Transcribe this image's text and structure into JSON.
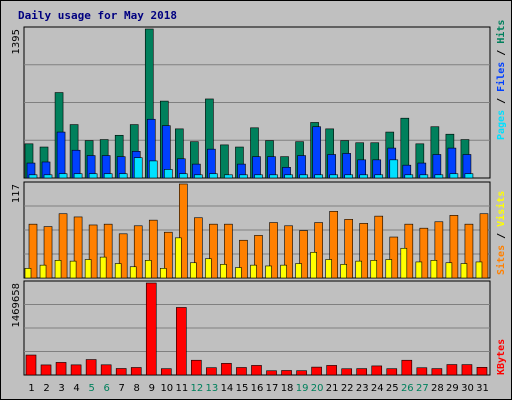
{
  "colors": {
    "frame_bg": "#c0c0c0",
    "page_bg": "#ffffff",
    "title": "#000080",
    "hits": "#00805c",
    "files": "#0040ff",
    "pages": "#00e0ff",
    "visits": "#ffff00",
    "sites": "#ff8000",
    "kbytes": "#ff0000",
    "weekend_label": "#00805c",
    "weekday_label": "#000000",
    "gridline": "#808080"
  },
  "chart_data": [
    {
      "type": "bar",
      "title": "Daily usage for May 2018",
      "categories": [
        "1",
        "2",
        "3",
        "4",
        "5",
        "6",
        "7",
        "8",
        "9",
        "10",
        "11",
        "12",
        "13",
        "14",
        "15",
        "16",
        "17",
        "18",
        "19",
        "20",
        "21",
        "22",
        "23",
        "24",
        "25",
        "26",
        "27",
        "28",
        "29",
        "30",
        "31"
      ],
      "weekend_days": [
        "5",
        "6",
        "12",
        "13",
        "19",
        "20",
        "26",
        "27"
      ],
      "ymax_label": "1395",
      "ylim": [
        0,
        1395
      ],
      "legend": [
        "Pages",
        "Files",
        "Hits"
      ],
      "series": [
        {
          "name": "Hits",
          "values": [
            320,
            290,
            800,
            500,
            350,
            360,
            400,
            500,
            1395,
            720,
            460,
            340,
            740,
            310,
            290,
            470,
            350,
            200,
            340,
            520,
            460,
            350,
            330,
            330,
            430,
            560,
            320,
            480,
            410,
            360,
            0
          ]
        },
        {
          "name": "Files",
          "values": [
            140,
            150,
            430,
            260,
            210,
            210,
            200,
            250,
            550,
            490,
            180,
            130,
            270,
            0,
            130,
            200,
            200,
            100,
            210,
            480,
            220,
            230,
            170,
            170,
            280,
            120,
            140,
            220,
            280,
            220,
            0
          ]
        },
        {
          "name": "Pages",
          "values": [
            30,
            30,
            40,
            40,
            40,
            40,
            40,
            190,
            160,
            80,
            40,
            30,
            40,
            30,
            30,
            30,
            30,
            30,
            30,
            30,
            30,
            30,
            30,
            30,
            170,
            30,
            30,
            30,
            40,
            40,
            0
          ]
        }
      ]
    },
    {
      "type": "bar",
      "categories": [
        "1",
        "2",
        "3",
        "4",
        "5",
        "6",
        "7",
        "8",
        "9",
        "10",
        "11",
        "12",
        "13",
        "14",
        "15",
        "16",
        "17",
        "18",
        "19",
        "20",
        "21",
        "22",
        "23",
        "24",
        "25",
        "26",
        "27",
        "28",
        "29",
        "30",
        "31"
      ],
      "ymax_label": "117",
      "ylim": [
        0,
        117
      ],
      "legend": [
        "Sites",
        "Visits"
      ],
      "series": [
        {
          "name": "Sites",
          "values": [
            67,
            64,
            80,
            76,
            66,
            67,
            55,
            65,
            72,
            57,
            117,
            75,
            67,
            67,
            47,
            53,
            69,
            65,
            59,
            69,
            83,
            73,
            68,
            77,
            51,
            67,
            62,
            70,
            78,
            67,
            80
          ]
        },
        {
          "name": "Visits",
          "values": [
            12,
            16,
            22,
            21,
            23,
            26,
            18,
            14,
            22,
            12,
            50,
            19,
            24,
            17,
            13,
            16,
            15,
            16,
            18,
            32,
            23,
            17,
            21,
            22,
            23,
            37,
            20,
            22,
            19,
            18,
            20
          ]
        }
      ]
    },
    {
      "type": "bar",
      "categories": [
        "1",
        "2",
        "3",
        "4",
        "5",
        "6",
        "7",
        "8",
        "9",
        "10",
        "11",
        "12",
        "13",
        "14",
        "15",
        "16",
        "17",
        "18",
        "19",
        "20",
        "21",
        "22",
        "23",
        "24",
        "25",
        "26",
        "27",
        "28",
        "29",
        "30",
        "31"
      ],
      "ymax_label": "1469658",
      "ylim": [
        0,
        1469658
      ],
      "legend": [
        "KBytes"
      ],
      "series": [
        {
          "name": "KBytes",
          "values": [
            319000,
            161000,
            201000,
            162000,
            247000,
            163000,
            104000,
            120000,
            1469658,
            101000,
            1079000,
            236000,
            117000,
            186000,
            120000,
            153000,
            68000,
            72000,
            69000,
            126000,
            153000,
            100000,
            102000,
            145000,
            101000,
            236000,
            116000,
            102000,
            167000,
            166000,
            123000
          ]
        }
      ]
    }
  ]
}
